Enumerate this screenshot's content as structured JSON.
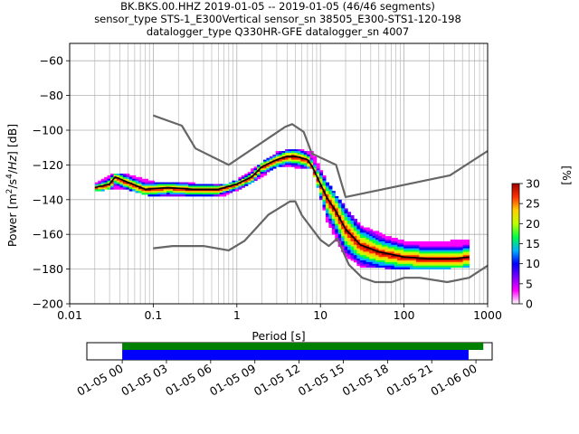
{
  "title": {
    "line1": "BK.BKS.00.HHZ   2019-01-05 -- 2019-01-05  (46/46 segments)",
    "line2": "sensor_type STS-1_E300Vertical sensor_sn 38505_E300-STS1-120-198",
    "line3": "datalogger_type Q330HR-GFE datalogger_sn 4007"
  },
  "chart_data": [
    {
      "type": "heatmap",
      "subtype": "ppsd",
      "xlabel": "Period [s]",
      "ylabel": "Power [m²/s⁴/Hz] [dB]",
      "xscale": "log",
      "xlim": [
        0.01,
        1000
      ],
      "ylim": [
        -200,
        -50
      ],
      "x_ticks": [
        "0.01",
        "0.1",
        "1",
        "10",
        "100",
        "1000"
      ],
      "y_ticks": [
        "−60",
        "−80",
        "−100",
        "−120",
        "−140",
        "−160",
        "−180",
        "−200"
      ],
      "grid": true,
      "colorbar": {
        "label": "[%]",
        "range": [
          0,
          30
        ],
        "ticks": [
          "0",
          "5",
          "10",
          "15",
          "20",
          "25",
          "30"
        ],
        "colors": [
          "#ffffff",
          "#ff00ff",
          "#7b00ff",
          "#0000ff",
          "#00b0ff",
          "#00ff40",
          "#c0ff00",
          "#ffd000",
          "#ff3000",
          "#a00000"
        ]
      },
      "series": [
        {
          "role": "noise_model_high",
          "x": [
            0.1,
            0.22,
            0.32,
            0.8,
            3.8,
            4.6,
            6.3,
            7.9,
            15.4,
            20,
            354.8,
            1000
          ],
          "y": [
            -91.5,
            -97.4,
            -110.5,
            -120,
            -98,
            -96.5,
            -101,
            -113.5,
            -120,
            -138.5,
            -126,
            -112
          ]
        },
        {
          "role": "noise_model_low",
          "x": [
            0.1,
            0.17,
            0.4,
            0.8,
            1.24,
            2.4,
            4.3,
            5,
            6,
            10,
            12.6,
            15.9,
            21.9,
            31.6,
            45,
            70.8,
            101,
            154,
            328,
            600,
            1000
          ],
          "y": [
            -168,
            -166.7,
            -166.7,
            -169.2,
            -163.7,
            -148.6,
            -141.1,
            -141,
            -149,
            -163.2,
            -166.7,
            -162.4,
            -177.5,
            -185,
            -187.5,
            -187.5,
            -185,
            -185,
            -187.5,
            -185,
            -178
          ]
        },
        {
          "role": "mean",
          "x": [
            0.02,
            0.025,
            0.03,
            0.035,
            0.05,
            0.08,
            0.15,
            0.3,
            0.6,
            1,
            1.5,
            2,
            3,
            4,
            5,
            6,
            7,
            8,
            10,
            12,
            15,
            20,
            30,
            50,
            100,
            200,
            400,
            600
          ],
          "y": [
            -133,
            -132,
            -131,
            -127,
            -130,
            -134,
            -133,
            -134,
            -134,
            -131,
            -127,
            -121,
            -117,
            -115,
            -115,
            -116,
            -117,
            -121,
            -131,
            -139,
            -146,
            -157,
            -166,
            -170,
            -173,
            -174,
            -174,
            -173
          ]
        }
      ],
      "density_bands": [
        {
          "x": [
            0.02,
            0.035,
            0.05,
            0.1,
            0.3,
            0.7,
            1,
            2,
            3,
            5,
            8,
            10,
            12,
            15,
            20,
            30,
            60,
            100,
            200,
            600
          ],
          "y_upper": [
            -130,
            -124,
            -125,
            -129,
            -130,
            -131,
            -128,
            -118,
            -112,
            -110,
            -112,
            -122,
            -129,
            -136,
            -144,
            -154,
            -160,
            -163,
            -164,
            -162
          ],
          "y_lower": [
            -135,
            -133,
            -134,
            -138,
            -138,
            -138,
            -134,
            -126,
            -121,
            -121,
            -122,
            -138,
            -152,
            -162,
            -172,
            -178,
            -179,
            -180,
            -180,
            -178
          ]
        }
      ]
    },
    {
      "type": "bar",
      "subtype": "timeline",
      "x_ticks": [
        "01-05 00",
        "01-05 03",
        "01-05 06",
        "01-05 09",
        "01-05 12",
        "01-05 15",
        "01-05 18",
        "01-05 21",
        "01-06 00"
      ],
      "xlim_hours": [
        -2.4,
        25.1
      ],
      "series": [
        {
          "role": "available",
          "color": "#008000",
          "start_hour": 0,
          "end_hour": 24.5
        },
        {
          "role": "used",
          "color": "#0000ff",
          "start_hour": 0,
          "end_hour": 23.5
        }
      ]
    }
  ]
}
